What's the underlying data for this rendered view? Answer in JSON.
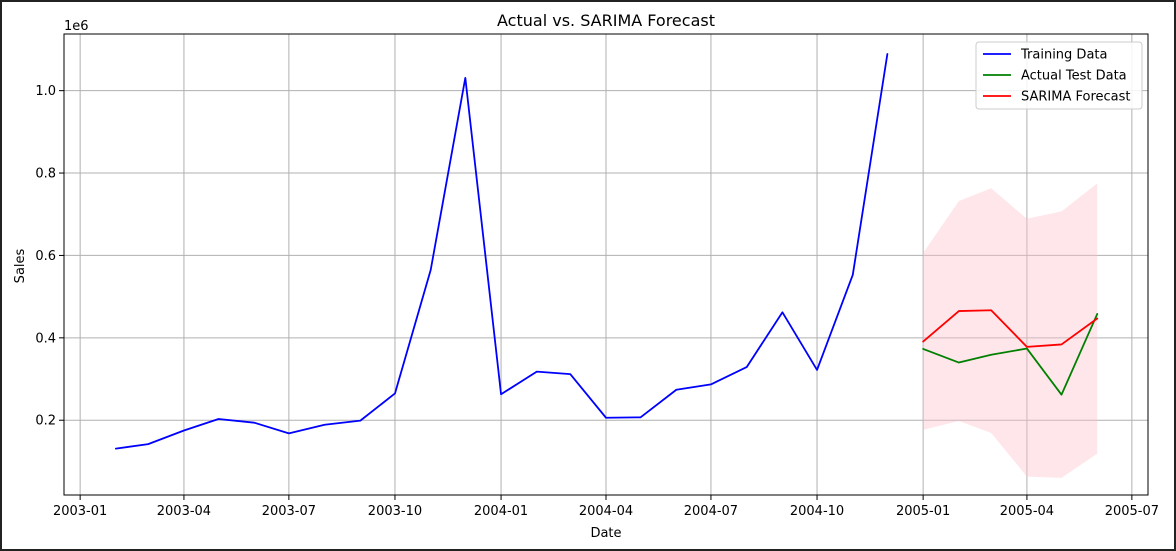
{
  "chart_data": {
    "type": "line",
    "title": "Actual vs. SARIMA Forecast",
    "xlabel": "Date",
    "ylabel": "Sales",
    "y_offset_label": "1e6",
    "ylim": [
      0.0185,
      1.1375
    ],
    "xlim": [
      "2002-12-18",
      "2005-07-15"
    ],
    "grid": true,
    "legend_position": "top-right",
    "x_ticks": [
      {
        "date": "2003-01-01",
        "label": "2003-01"
      },
      {
        "date": "2003-04-01",
        "label": "2003-04"
      },
      {
        "date": "2003-07-01",
        "label": "2003-07"
      },
      {
        "date": "2003-10-01",
        "label": "2003-10"
      },
      {
        "date": "2004-01-01",
        "label": "2004-01"
      },
      {
        "date": "2004-04-01",
        "label": "2004-04"
      },
      {
        "date": "2004-07-01",
        "label": "2004-07"
      },
      {
        "date": "2004-10-01",
        "label": "2004-10"
      },
      {
        "date": "2005-01-01",
        "label": "2005-01"
      },
      {
        "date": "2005-04-01",
        "label": "2005-04"
      },
      {
        "date": "2005-07-01",
        "label": "2005-07"
      }
    ],
    "y_ticks": [
      {
        "value": 0.2,
        "label": "0.2"
      },
      {
        "value": 0.4,
        "label": "0.4"
      },
      {
        "value": 0.6,
        "label": "0.6"
      },
      {
        "value": 0.8,
        "label": "0.8"
      },
      {
        "value": 1.0,
        "label": "1.0"
      }
    ],
    "series": [
      {
        "name": "Training Data",
        "color": "#0000ff",
        "x": [
          "2003-02-01",
          "2003-03-01",
          "2003-04-01",
          "2003-05-01",
          "2003-06-01",
          "2003-07-01",
          "2003-08-01",
          "2003-09-01",
          "2003-10-01",
          "2003-11-01",
          "2003-12-01",
          "2004-01-01",
          "2004-02-01",
          "2004-03-01",
          "2004-04-01",
          "2004-05-01",
          "2004-06-01",
          "2004-07-01",
          "2004-08-01",
          "2004-09-01",
          "2004-10-01",
          "2004-11-01",
          "2004-12-01"
        ],
        "y": [
          0.131,
          0.142,
          0.175,
          0.203,
          0.194,
          0.168,
          0.189,
          0.199,
          0.265,
          0.565,
          1.031,
          0.263,
          0.318,
          0.312,
          0.206,
          0.207,
          0.274,
          0.287,
          0.329,
          0.462,
          0.322,
          0.553,
          1.089
        ]
      },
      {
        "name": "Actual Test Data",
        "color": "#008000",
        "x": [
          "2005-01-01",
          "2005-02-01",
          "2005-03-01",
          "2005-04-01",
          "2005-05-01",
          "2005-06-01"
        ],
        "y": [
          0.373,
          0.34,
          0.359,
          0.374,
          0.262,
          0.458
        ]
      },
      {
        "name": "SARIMA Forecast",
        "color": "#ff0000",
        "x": [
          "2005-01-01",
          "2005-02-01",
          "2005-03-01",
          "2005-04-01",
          "2005-05-01",
          "2005-06-01"
        ],
        "y": [
          0.391,
          0.465,
          0.467,
          0.378,
          0.384,
          0.447
        ]
      }
    ],
    "confidence_interval": {
      "color": "#ffc0cb",
      "x": [
        "2005-01-01",
        "2005-02-01",
        "2005-03-01",
        "2005-04-01",
        "2005-05-01",
        "2005-06-01"
      ],
      "lower": [
        0.177,
        0.198,
        0.169,
        0.063,
        0.06,
        0.119
      ],
      "upper": [
        0.606,
        0.732,
        0.763,
        0.689,
        0.707,
        0.775
      ]
    }
  }
}
